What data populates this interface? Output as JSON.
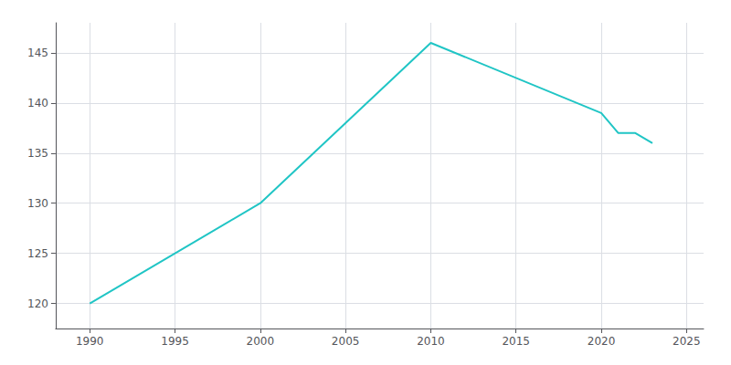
{
  "chart_data": {
    "type": "line",
    "x": [
      1990,
      2000,
      2010,
      2020,
      2021,
      2022,
      2023
    ],
    "values": [
      120,
      130,
      146,
      139,
      137,
      137,
      136
    ],
    "color": "#20c5c5",
    "xlim": [
      1988,
      2026
    ],
    "ylim": [
      117.5,
      148
    ],
    "xticks": [
      1990,
      1995,
      2000,
      2005,
      2010,
      2015,
      2020,
      2025
    ],
    "yticks": [
      120,
      125,
      130,
      135,
      140,
      145
    ],
    "grid": true
  }
}
